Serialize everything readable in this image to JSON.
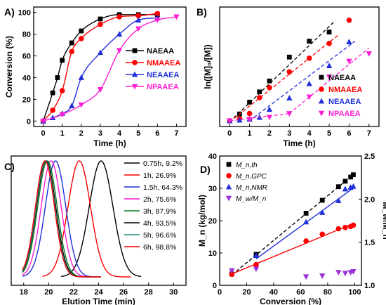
{
  "figure": {
    "colors": {
      "black": "#000000",
      "red": "#ff0000",
      "blue": "#1f2fd9",
      "magenta": "#ff1fd2",
      "green": "#0b7a2b",
      "teal": "#2a8c8c",
      "gray": "#808080"
    }
  },
  "chart_data": [
    {
      "panel": "A)",
      "type": "line",
      "xlabel": "Time (h)",
      "ylabel": "Conversion (%)",
      "xlim": [
        -0.5,
        7.5
      ],
      "ylim": [
        -5,
        105
      ],
      "xticks": [
        "0",
        "1",
        "2",
        "3",
        "4",
        "5",
        "6",
        "7"
      ],
      "yticks": [
        "0",
        "20",
        "40",
        "60",
        "80",
        "100"
      ],
      "legend_position": "right",
      "series": [
        {
          "name": "NAEAA",
          "color": "#000000",
          "marker": "square",
          "x": [
            0,
            0.5,
            0.75,
            1,
            1.5,
            2,
            3,
            4,
            5,
            6
          ],
          "y": [
            0,
            26,
            40,
            56,
            72,
            83,
            94,
            98,
            98,
            98
          ]
        },
        {
          "name": "NMAAEA",
          "color": "#ff0000",
          "marker": "circle",
          "x": [
            0,
            0.5,
            1,
            1.5,
            2,
            3,
            4,
            5,
            6
          ],
          "y": [
            0,
            10,
            28,
            64,
            76,
            89,
            96,
            97,
            99
          ]
        },
        {
          "name": "NEAAEA",
          "color": "#1f2fd9",
          "marker": "triangle-up",
          "x": [
            0,
            0.5,
            1,
            1.5,
            2,
            3,
            4,
            5,
            6
          ],
          "y": [
            0,
            3,
            7,
            14,
            40,
            63,
            80,
            93,
            95
          ]
        },
        {
          "name": "NPAAEA",
          "color": "#ff1fd2",
          "marker": "triangle-down",
          "x": [
            0,
            1,
            2,
            3,
            4,
            5,
            6,
            7
          ],
          "y": [
            0,
            6,
            15,
            29,
            65,
            85,
            93,
            96
          ]
        }
      ]
    },
    {
      "panel": "B)",
      "type": "scatter",
      "xlabel": "Time (h)",
      "ylabel": "ln([M]₀/[M])",
      "xlim": [
        -0.5,
        7.5
      ],
      "ylim": [
        -0.25,
        5.0
      ],
      "xticks": [
        "0",
        "1",
        "2",
        "3",
        "4",
        "5",
        "6",
        "7"
      ],
      "legend_position": "right",
      "series": [
        {
          "name": "NAEAA",
          "color": "#000000",
          "marker": "square",
          "x": [
            0,
            0.5,
            1,
            1.5,
            2,
            3,
            4,
            5
          ],
          "y": [
            0,
            0.3,
            0.82,
            1.27,
            1.75,
            2.8,
            3.5,
            3.9
          ],
          "fit": [
            [
              0,
              -0.05
            ],
            [
              5.3,
              4.4
            ]
          ]
        },
        {
          "name": "NMAAEA",
          "color": "#ff0000",
          "marker": "circle",
          "x": [
            0,
            0.5,
            1,
            1.5,
            2,
            3,
            4,
            5,
            6
          ],
          "y": [
            0,
            0.1,
            0.32,
            1.02,
            1.46,
            2.15,
            2.75,
            3.4,
            4.42
          ],
          "fit": [
            [
              0,
              -0.05
            ],
            [
              5.5,
              3.8
            ]
          ]
        },
        {
          "name": "NEAAEA",
          "color": "#1f2fd9",
          "marker": "triangle-up",
          "x": [
            0,
            0.5,
            1,
            1.5,
            2,
            3,
            4,
            5,
            6
          ],
          "y": [
            0,
            0.03,
            0.07,
            0.15,
            0.5,
            1.0,
            1.63,
            2.42,
            3.47
          ],
          "fit": [
            [
              1,
              0.0
            ],
            [
              6.3,
              3.5
            ]
          ]
        },
        {
          "name": "NPAAEA",
          "color": "#ff1fd2",
          "marker": "triangle-down",
          "x": [
            0,
            1,
            2,
            3,
            4,
            5,
            6,
            7
          ],
          "y": [
            0,
            0.06,
            0.16,
            0.32,
            1.05,
            1.93,
            2.62,
            2.95
          ],
          "fit_segments": [
            [
              [
                0,
                0.0
              ],
              [
                3,
                0.32
              ]
            ],
            [
              [
                3,
                0.32
              ],
              [
                7,
                3.2
              ]
            ]
          ]
        }
      ]
    },
    {
      "panel": "C)",
      "type": "line",
      "xlabel": "Elution Time (min)",
      "xlim": [
        17,
        31
      ],
      "xticks": [
        "18",
        "20",
        "22",
        "24",
        "26",
        "28",
        "30"
      ],
      "legend_position": "right",
      "series": [
        {
          "name": "0.75h, 9.2%",
          "color": "#000000",
          "peak": 24.2,
          "width": 0.95,
          "range": [
            21.0,
            27.4
          ]
        },
        {
          "name": "1h, 26.9%",
          "color": "#ff0000",
          "peak": 22.45,
          "width": 0.9,
          "range": [
            19.5,
            26.6
          ]
        },
        {
          "name": "1.5h, 64.3%",
          "color": "#1f2fd9",
          "peak": 20.55,
          "width": 0.82,
          "range": [
            17.9,
            24.2
          ]
        },
        {
          "name": "2h, 75.6%",
          "color": "#ff1fd2",
          "peak": 20.2,
          "width": 0.8,
          "range": [
            17.9,
            24.2
          ]
        },
        {
          "name": "3h, 87.9%",
          "color": "#0b7a2b",
          "peak": 19.9,
          "width": 0.78,
          "range": [
            17.9,
            24.2
          ]
        },
        {
          "name": "4h, 93.5%",
          "color": "#000000",
          "peak": 19.8,
          "width": 0.77,
          "range": [
            17.9,
            24.2
          ]
        },
        {
          "name": "5h, 96.6%",
          "color": "#2a8c8c",
          "peak": 19.75,
          "width": 0.76,
          "range": [
            17.9,
            24.2
          ]
        },
        {
          "name": "6h, 98.8%",
          "color": "#ff0000",
          "peak": 19.7,
          "width": 0.76,
          "range": [
            17.9,
            24.2
          ]
        }
      ]
    },
    {
      "panel": "D)",
      "type": "scatter",
      "xlabel": "Conversion (%)",
      "ylabel_left": "M_n (kg/mol)",
      "ylabel_right": "M_w/M_n",
      "xlim": [
        0,
        105
      ],
      "ylim_left": [
        0,
        40
      ],
      "ylim_right": [
        1.0,
        2.5
      ],
      "xticks": [
        "0",
        "20",
        "40",
        "60",
        "80",
        "100"
      ],
      "yticks_left": [
        "0",
        "10",
        "20",
        "30",
        "40"
      ],
      "yticks_right": [
        "1.0",
        "1.5",
        "2.0",
        "2.5"
      ],
      "legend_position": "top-left",
      "series": [
        {
          "name": "M_n,th",
          "color": "#000000",
          "marker": "square",
          "axis": "left",
          "x": [
            9,
            27,
            64,
            76,
            88,
            93,
            97,
            99
          ],
          "y": [
            3.5,
            9.6,
            22.3,
            26.3,
            30.5,
            32.2,
            33.5,
            34.2
          ],
          "fit": [
            [
              9,
              3.2
            ],
            [
              100,
              34.6
            ]
          ],
          "fit_style": "dashed"
        },
        {
          "name": "M_n,GPC",
          "color": "#ff0000",
          "marker": "circle",
          "axis": "left",
          "x": [
            9,
            27,
            64,
            76,
            88,
            93,
            97,
            99
          ],
          "y": [
            3.4,
            6.4,
            13.7,
            15.8,
            17.5,
            17.9,
            18.2,
            18.6
          ],
          "fit": [
            [
              9,
              3.5
            ],
            [
              100,
              19.3
            ]
          ],
          "fit_style": "solid"
        },
        {
          "name": "M_n,NMR",
          "color": "#1f2fd9",
          "marker": "triangle-up",
          "axis": "left",
          "x": [
            27,
            64,
            76,
            88,
            93,
            97,
            99
          ],
          "y": [
            9.2,
            19.6,
            22.5,
            26.2,
            29.8,
            30.3,
            30.6
          ],
          "fit": [
            [
              27,
              8.2
            ],
            [
              100,
              30.4
            ]
          ],
          "fit_style": "solid"
        },
        {
          "name": "M_w/M_n",
          "color": "#9b30d9",
          "marker": "triangle-down",
          "axis": "right",
          "x": [
            9,
            27,
            64,
            76,
            88,
            93,
            97,
            99
          ],
          "y": [
            1.17,
            1.19,
            1.1,
            1.11,
            1.15,
            1.14,
            1.15,
            1.16
          ]
        }
      ]
    }
  ]
}
